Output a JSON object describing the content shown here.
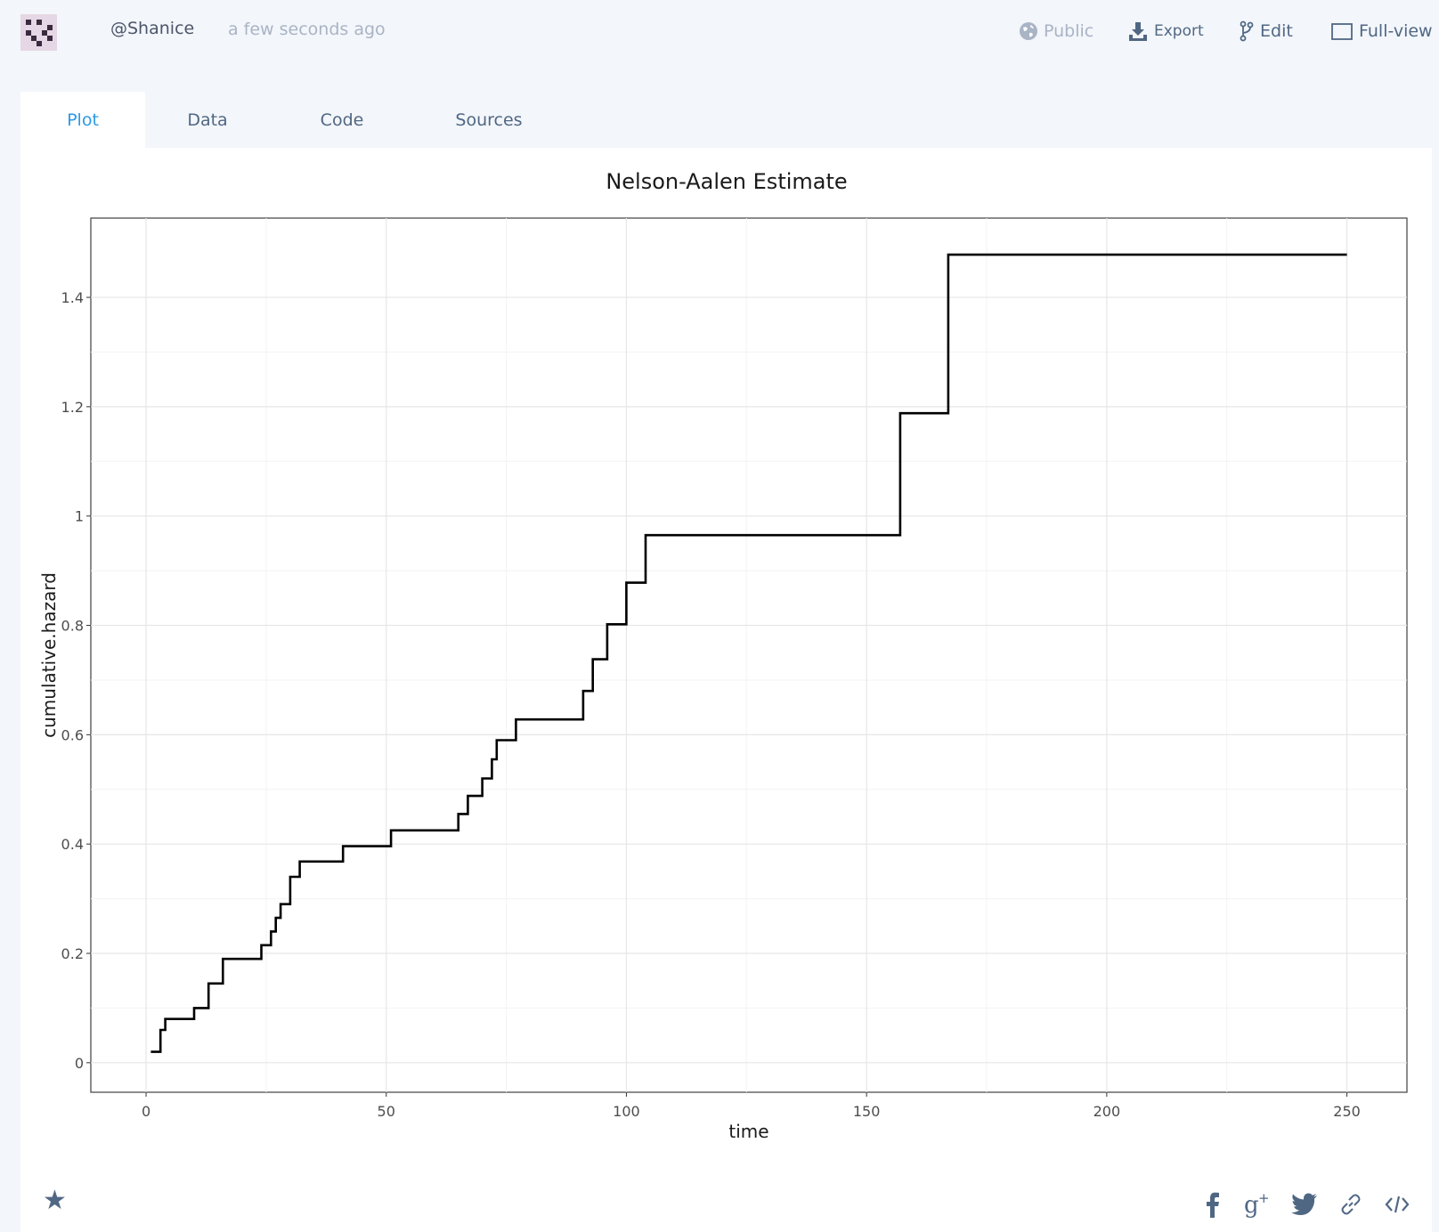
{
  "header": {
    "username": "@Shanice",
    "timestamp": "a few seconds ago",
    "actions": {
      "public": "Public",
      "export": "Export",
      "edit": "Edit",
      "full_view": "Full-view"
    }
  },
  "tabs": [
    {
      "label": "Plot",
      "active": true
    },
    {
      "label": "Data",
      "active": false
    },
    {
      "label": "Code",
      "active": false
    },
    {
      "label": "Sources",
      "active": false
    }
  ],
  "colors": {
    "accent": "#2e9ae4",
    "text": "#506784",
    "muted": "#a9b4c5",
    "background": "#f3f6fa",
    "line": "#000000"
  },
  "icons": {
    "avatar": "avatar",
    "public": "globe-icon",
    "export": "download-icon",
    "edit": "fork-icon",
    "full_view": "fullscreen-icon",
    "star": "star-icon",
    "facebook": "facebook-icon",
    "google_plus": "google-plus-icon",
    "twitter": "twitter-icon",
    "link": "link-icon",
    "embed": "embed-icon"
  },
  "chart_data": {
    "type": "line",
    "step": true,
    "title": "Nelson-Aalen Estimate",
    "xlabel": "time",
    "ylabel": "cumulative.hazard",
    "xlim": [
      -11.5,
      262.5
    ],
    "ylim": [
      -0.054,
      1.545
    ],
    "xticks": [
      0,
      50,
      100,
      150,
      200,
      250
    ],
    "yticks": [
      0,
      0.2,
      0.4,
      0.6,
      0.8,
      1,
      1.2,
      1.4
    ],
    "ytick_labels": [
      "0",
      "0.2",
      "0.4",
      "0.6",
      "0.8",
      "1",
      "1.2",
      "1.4"
    ],
    "grid": true,
    "legend": "none",
    "series": [
      {
        "x": [
          1,
          3,
          4,
          10,
          13,
          16,
          24,
          26,
          27,
          28,
          30,
          32,
          41,
          51,
          65,
          67,
          70,
          72,
          73,
          77,
          91,
          93,
          96,
          100,
          104,
          157,
          167,
          250
        ],
        "y": [
          0.02,
          0.06,
          0.08,
          0.1,
          0.145,
          0.19,
          0.215,
          0.24,
          0.265,
          0.29,
          0.34,
          0.368,
          0.396,
          0.425,
          0.455,
          0.488,
          0.52,
          0.555,
          0.59,
          0.628,
          0.68,
          0.738,
          0.802,
          0.878,
          0.965,
          1.188,
          1.478,
          1.478
        ]
      }
    ]
  },
  "footer": {
    "star": "★"
  }
}
